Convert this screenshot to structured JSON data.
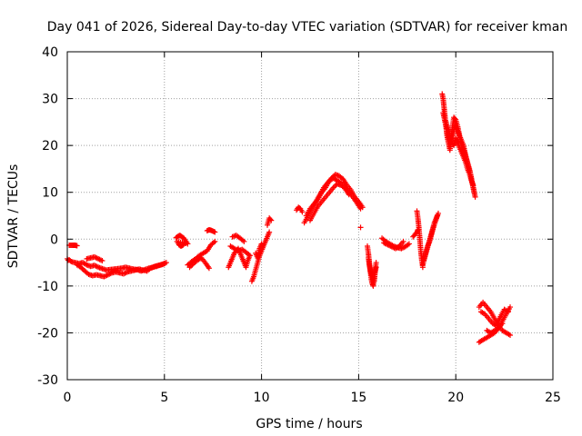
{
  "chart_data": {
    "type": "scatter",
    "title": "Day 041 of 2026, Sidereal Day-to-day VTEC variation (SDTVAR) for receiver kman",
    "xlabel": "GPS time / hours",
    "ylabel": "SDTVAR / TECUs",
    "xlim": [
      0,
      25
    ],
    "ylim": [
      -30,
      40
    ],
    "xticks": [
      0,
      5,
      10,
      15,
      20,
      25
    ],
    "yticks": [
      -30,
      -20,
      -10,
      0,
      10,
      20,
      30,
      40
    ],
    "grid": true,
    "marker": "+",
    "colors": {
      "series": "#ff0000",
      "grid": "#a0a0a0",
      "axis": "#000000"
    },
    "series": [
      {
        "name": "SDTVAR",
        "segments": [
          {
            "x": [
              0.0,
              0.05,
              0.1,
              0.15
            ],
            "y": [
              -4.2,
              -4.5,
              -4.4,
              -4.6
            ]
          },
          {
            "x": [
              0.1,
              0.2,
              0.3,
              0.4,
              0.5
            ],
            "y": [
              -1.3,
              -1.3,
              -1.3,
              -1.3,
              -1.4
            ]
          },
          {
            "x": [
              0.2,
              0.4,
              0.6,
              0.8,
              1.0,
              1.2,
              1.4,
              1.6,
              1.8,
              2.0,
              2.2,
              2.4,
              2.6,
              2.8,
              3.0,
              3.2,
              3.4,
              3.6,
              3.8,
              4.0,
              4.2,
              4.4,
              4.6,
              4.8,
              5.0
            ],
            "y": [
              -4.8,
              -5.0,
              -5.2,
              -5.0,
              -5.5,
              -5.8,
              -5.6,
              -6.0,
              -6.3,
              -6.6,
              -6.5,
              -6.4,
              -6.3,
              -6.2,
              -6.0,
              -6.2,
              -6.4,
              -6.5,
              -6.8,
              -6.5,
              -6.2,
              -6.0,
              -5.8,
              -5.5,
              -5.2
            ]
          },
          {
            "x": [
              0.5,
              0.7,
              0.9,
              1.1,
              1.3,
              1.5,
              1.7,
              1.9,
              2.1,
              2.3,
              2.5,
              2.7,
              2.9,
              3.1,
              3.3,
              3.5,
              3.7,
              3.9,
              4.1,
              4.3,
              4.5,
              4.7,
              4.9,
              5.1
            ],
            "y": [
              -5.5,
              -6.0,
              -6.8,
              -7.5,
              -7.8,
              -7.6,
              -7.8,
              -8.0,
              -7.6,
              -7.2,
              -7.0,
              -7.2,
              -7.4,
              -7.0,
              -6.8,
              -6.6,
              -6.4,
              -6.6,
              -6.8,
              -6.2,
              -5.8,
              -5.6,
              -5.4,
              -5.0
            ]
          },
          {
            "x": [
              1.0,
              1.2,
              1.4,
              1.6,
              1.8
            ],
            "y": [
              -4.2,
              -4.0,
              -3.8,
              -4.2,
              -4.6
            ]
          },
          {
            "x": [
              5.6,
              5.7,
              5.8,
              5.9,
              6.0,
              6.1,
              6.2,
              5.65,
              5.75,
              5.85,
              5.95,
              6.05
            ],
            "y": [
              0.3,
              0.6,
              0.8,
              0.5,
              0.2,
              -0.4,
              -1.0,
              -0.5,
              -1.2,
              -1.5,
              -1.3,
              -0.8
            ]
          },
          {
            "x": [
              6.2,
              6.4,
              6.6,
              6.8,
              7.0,
              7.2,
              7.4,
              7.6
            ],
            "y": [
              -5.5,
              -4.8,
              -4.2,
              -3.5,
              -3.0,
              -2.5,
              -1.2,
              -0.5
            ]
          },
          {
            "x": [
              6.3,
              6.5,
              6.7,
              6.9,
              7.1,
              7.3
            ],
            "y": [
              -6.0,
              -5.2,
              -4.5,
              -4.0,
              -5.0,
              -6.2
            ]
          },
          {
            "x": [
              7.2,
              7.3,
              7.4,
              7.5,
              7.6
            ],
            "y": [
              1.8,
              2.0,
              1.9,
              1.7,
              1.5
            ]
          },
          {
            "x": [
              8.3,
              8.4,
              8.5,
              8.6,
              8.7,
              8.8,
              8.9,
              9.0,
              9.1,
              9.2,
              9.3,
              9.4
            ],
            "y": [
              -6.0,
              -5.0,
              -4.0,
              -3.0,
              -2.5,
              -2.0,
              -3.0,
              -4.0,
              -5.0,
              -6.0,
              -4.5,
              -3.5
            ]
          },
          {
            "x": [
              8.4,
              8.6,
              8.8,
              9.0,
              9.2,
              9.4
            ],
            "y": [
              -1.5,
              -2.0,
              -2.5,
              -2.2,
              -2.8,
              -3.5
            ]
          },
          {
            "x": [
              8.5,
              8.7,
              8.9,
              9.1
            ],
            "y": [
              0.5,
              0.8,
              0.2,
              -0.5
            ]
          },
          {
            "x": [
              9.5,
              9.6,
              9.7,
              9.8,
              9.9,
              10.0,
              10.1,
              10.2,
              10.3,
              10.4
            ],
            "y": [
              -9.0,
              -8.0,
              -6.5,
              -5.0,
              -3.5,
              -2.5,
              -1.5,
              -0.5,
              0.5,
              1.5
            ]
          },
          {
            "x": [
              9.7,
              9.8,
              9.9,
              10.0
            ],
            "y": [
              -3.0,
              -4.0,
              -2.0,
              -1.0
            ]
          },
          {
            "x": [
              10.3,
              10.4,
              10.5
            ],
            "y": [
              3.0,
              4.5,
              4.0
            ]
          },
          {
            "x": [
              11.8,
              11.9,
              12.0,
              12.1
            ],
            "y": [
              6.2,
              6.8,
              6.5,
              5.8
            ]
          },
          {
            "x": [
              12.2,
              12.4,
              12.6,
              12.8,
              13.0,
              13.2,
              13.4,
              13.6,
              13.8,
              14.0,
              14.2,
              14.4,
              14.6,
              14.8,
              15.0,
              15.2
            ],
            "y": [
              3.5,
              5.0,
              6.5,
              8.0,
              9.5,
              11.0,
              12.0,
              13.0,
              13.8,
              13.5,
              12.8,
              11.5,
              10.5,
              9.0,
              8.0,
              6.8
            ]
          },
          {
            "x": [
              12.3,
              12.5,
              12.7,
              12.9,
              13.1,
              13.3,
              13.5,
              13.7,
              13.9,
              14.1,
              14.3,
              14.5,
              14.7,
              14.9,
              15.1
            ],
            "y": [
              5.0,
              6.5,
              7.5,
              8.5,
              10.0,
              11.0,
              12.5,
              13.0,
              12.5,
              12.0,
              11.0,
              10.0,
              9.0,
              7.8,
              6.5
            ]
          },
          {
            "x": [
              12.5,
              12.7,
              12.9,
              13.1,
              13.3,
              13.5,
              13.7,
              13.9,
              14.1,
              14.3,
              14.5
            ],
            "y": [
              4.0,
              5.5,
              7.0,
              8.0,
              9.0,
              10.0,
              11.0,
              11.8,
              11.5,
              10.8,
              9.5
            ]
          },
          {
            "x": [
              15.1
            ],
            "y": [
              2.5
            ]
          },
          {
            "x": [
              15.45,
              15.5,
              15.55,
              15.6,
              15.65,
              15.7,
              15.75,
              15.8,
              15.85,
              15.9
            ],
            "y": [
              -1.5,
              -3.0,
              -5.0,
              -7.0,
              -8.5,
              -9.5,
              -10.0,
              -8.0,
              -6.5,
              -5.0
            ]
          },
          {
            "x": [
              15.5,
              15.55,
              15.6,
              15.65,
              15.7,
              15.75,
              15.8,
              15.85,
              15.9
            ],
            "y": [
              -4.0,
              -5.5,
              -6.5,
              -7.5,
              -8.0,
              -9.0,
              -9.0,
              -7.0,
              -6.0
            ]
          },
          {
            "x": [
              16.2,
              16.4,
              16.6,
              16.8,
              17.0,
              17.2,
              17.4,
              17.6
            ],
            "y": [
              0.2,
              -0.5,
              -1.0,
              -1.5,
              -1.8,
              -2.0,
              -1.6,
              -1.0
            ]
          },
          {
            "x": [
              16.3,
              16.5,
              16.7,
              16.9,
              17.1,
              17.3
            ],
            "y": [
              -0.8,
              -1.2,
              -1.6,
              -2.0,
              -1.5,
              -0.5
            ]
          },
          {
            "x": [
              17.8,
              17.9,
              18.0,
              18.05
            ],
            "y": [
              0.5,
              1.0,
              1.5,
              2.0
            ]
          },
          {
            "x": [
              18.0,
              18.05,
              18.1,
              18.15,
              18.2,
              18.25,
              18.3
            ],
            "y": [
              6.0,
              4.5,
              2.5,
              0.0,
              -2.5,
              -4.5,
              -6.0
            ]
          },
          {
            "x": [
              18.3,
              18.4,
              18.5,
              18.6,
              18.7,
              18.8,
              18.9,
              19.0,
              19.1
            ],
            "y": [
              -5.5,
              -4.0,
              -2.5,
              -1.0,
              0.5,
              2.0,
              3.5,
              4.5,
              5.5
            ]
          },
          {
            "x": [
              18.35,
              18.45,
              18.55,
              18.65,
              18.75,
              18.85,
              18.95,
              19.05
            ],
            "y": [
              -4.5,
              -3.0,
              -1.5,
              -0.5,
              1.0,
              2.5,
              3.8,
              5.0
            ]
          },
          {
            "x": [
              19.3,
              19.35,
              19.4,
              19.45,
              19.5,
              19.55,
              19.6,
              19.65,
              19.7,
              19.8,
              19.9,
              20.0,
              20.1,
              20.2,
              20.3,
              20.4,
              20.5,
              20.6,
              20.7,
              20.8,
              20.9,
              21.0
            ],
            "y": [
              31.0,
              30.0,
              28.0,
              26.0,
              24.0,
              22.0,
              21.0,
              20.0,
              19.0,
              23.0,
              26.0,
              25.5,
              24.0,
              22.0,
              21.0,
              20.0,
              18.0,
              16.5,
              15.0,
              13.0,
              11.0,
              9.0
            ]
          },
          {
            "x": [
              19.35,
              19.45,
              19.55,
              19.65,
              19.75,
              19.85,
              19.95,
              20.05,
              20.15,
              20.25,
              20.35,
              20.45,
              20.55,
              20.65,
              20.75,
              20.85,
              20.95
            ],
            "y": [
              27.0,
              25.0,
              23.0,
              21.5,
              20.5,
              22.0,
              24.5,
              23.5,
              22.5,
              21.0,
              19.5,
              18.5,
              17.0,
              15.5,
              14.0,
              12.0,
              10.0
            ]
          },
          {
            "x": [
              19.5,
              19.6,
              19.7,
              19.8,
              19.9,
              20.0,
              20.1,
              20.2,
              20.3,
              20.4,
              20.5,
              20.6,
              20.7,
              20.8,
              20.9
            ],
            "y": [
              25.0,
              23.5,
              22.0,
              20.5,
              20.0,
              21.5,
              20.5,
              19.5,
              18.5,
              17.5,
              16.5,
              15.0,
              14.0,
              12.5,
              11.5
            ]
          },
          {
            "x": [
              21.2,
              21.4,
              21.6,
              21.8,
              22.0,
              22.2,
              22.4,
              22.6,
              22.8
            ],
            "y": [
              -22.0,
              -21.5,
              -21.0,
              -20.5,
              -20.0,
              -19.0,
              -17.5,
              -16.0,
              -14.5
            ]
          },
          {
            "x": [
              21.2,
              21.4,
              21.6,
              21.8,
              22.0,
              22.2,
              22.4,
              22.6,
              22.8
            ],
            "y": [
              -14.5,
              -13.5,
              -14.5,
              -15.5,
              -17.0,
              -18.5,
              -19.5,
              -20.0,
              -20.5
            ]
          },
          {
            "x": [
              21.3,
              21.5,
              21.7,
              21.9,
              22.1,
              22.3,
              22.5,
              22.7
            ],
            "y": [
              -15.5,
              -16.0,
              -17.0,
              -18.0,
              -18.5,
              -16.5,
              -15.0,
              -15.5
            ]
          },
          {
            "x": [
              21.6,
              21.8,
              22.0,
              22.2,
              22.4
            ],
            "y": [
              -19.5,
              -20.0,
              -19.5,
              -19.0,
              -18.0
            ]
          }
        ]
      }
    ]
  }
}
